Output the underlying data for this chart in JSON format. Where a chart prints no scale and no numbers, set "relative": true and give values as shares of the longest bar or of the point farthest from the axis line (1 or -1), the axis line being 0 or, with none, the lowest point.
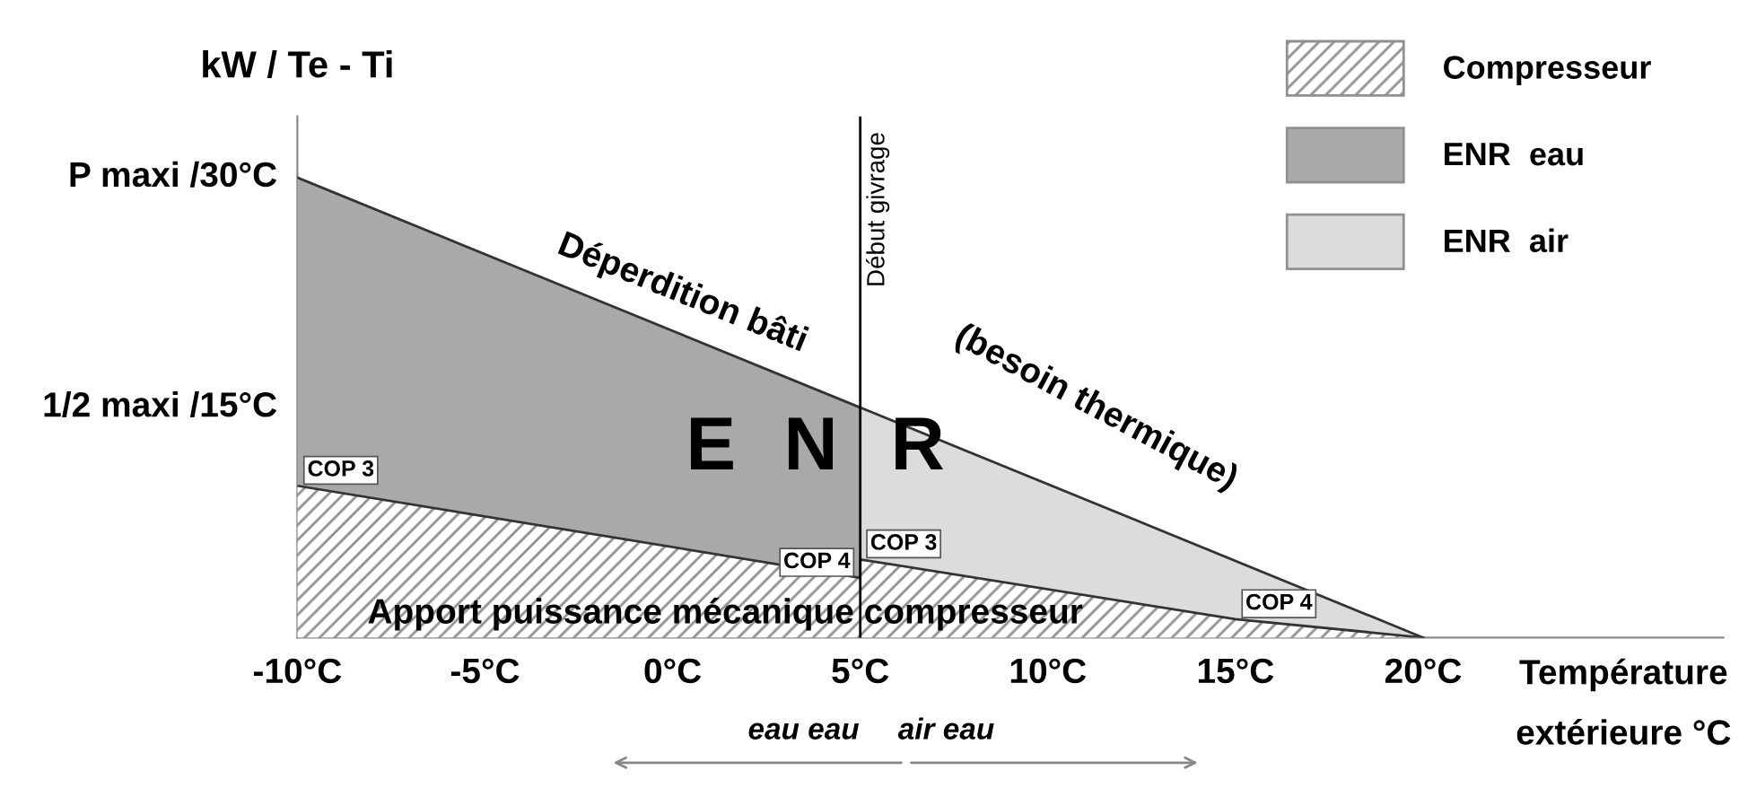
{
  "chart_data": {
    "type": "area",
    "relative": true,
    "ylabel": "kW / Te - Ti",
    "xlabel": "Température\nextérieure °C",
    "xlim": [
      -10,
      28
    ],
    "xticks": [
      {
        "value": -10,
        "label": "-10°C"
      },
      {
        "value": -5,
        "label": "-5°C"
      },
      {
        "value": 0,
        "label": "0°C"
      },
      {
        "value": 5,
        "label": "5°C"
      },
      {
        "value": 10,
        "label": "10°C"
      },
      {
        "value": 15,
        "label": "15°C"
      },
      {
        "value": 20,
        "label": "20°C"
      }
    ],
    "series": [
      {
        "name": "Compresseur",
        "color": "#ffffff",
        "x": [
          -10,
          5,
          5,
          15,
          20
        ],
        "values": [
          0.33,
          0.13,
          0.17,
          0.04,
          0
        ]
      },
      {
        "name": "ENR  eau",
        "color": "#a9a9a9",
        "x": [
          -10,
          5
        ],
        "values": [
          1,
          0.5
        ]
      },
      {
        "name": "ENR  air",
        "color": "#dcdcdc",
        "x": [
          5,
          20
        ],
        "values": [
          0.5,
          0
        ]
      }
    ],
    "ref_lines": [
      {
        "axis": "x",
        "value": 5,
        "label": "Début givrage",
        "color": "#000000"
      }
    ],
    "annotations": [
      "Déperdition bâti",
      "(besoin thermique)",
      "E",
      "N",
      "R",
      "Apport puissance mécanique compresseur",
      "eau eau",
      "air eau",
      "P maxi /30°C",
      "1/2 maxi /15°C",
      {
        "text": "COP 3",
        "x": -10,
        "y": 0.33
      },
      {
        "text": "COP 4",
        "x": 5,
        "y": 0.13
      },
      {
        "text": "COP 3",
        "x": 5,
        "y": 0.17
      },
      {
        "text": "COP 4",
        "x": 15,
        "y": 0.04
      }
    ],
    "legend": "top right",
    "grid": false
  }
}
